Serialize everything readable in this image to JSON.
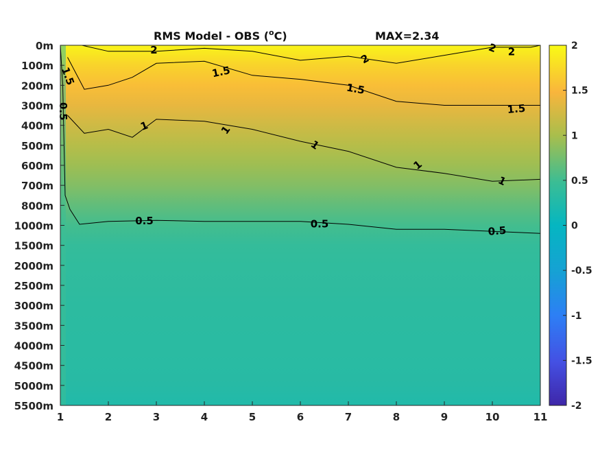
{
  "chart_data": {
    "type": "heatmap",
    "title": "RMS Model - OBS (°C)",
    "title_left": "RMS Model - OBS (",
    "title_sup": "o",
    "title_right": "C)",
    "annotation": "MAX=2.34",
    "max_value": 2.34,
    "x": {
      "ticks": [
        1,
        2,
        3,
        4,
        5,
        6,
        7,
        8,
        9,
        10,
        11
      ],
      "range": [
        1,
        11
      ]
    },
    "y": {
      "ticks": [
        "0m",
        "100m",
        "200m",
        "300m",
        "400m",
        "500m",
        "600m",
        "700m",
        "800m",
        "1000m",
        "1500m",
        "2000m",
        "2500m",
        "3000m",
        "3500m",
        "4000m",
        "4500m",
        "5000m",
        "5500m"
      ]
    },
    "colorbar": {
      "range": [
        -2,
        2
      ],
      "ticks": [
        "2",
        "1.5",
        "1",
        "0.5",
        "0",
        "-0.5",
        "-1",
        "-1.5",
        "-2"
      ],
      "colormap": "parula"
    },
    "contour_levels": [
      0.5,
      1,
      1.5,
      2
    ],
    "contours": [
      {
        "level": 2,
        "points": [
          [
            1.45,
            0.0
          ],
          [
            2.0,
            0.3
          ],
          [
            3.0,
            0.3
          ],
          [
            4.0,
            0.15
          ],
          [
            5.0,
            0.3
          ],
          [
            6.0,
            0.75
          ],
          [
            7.0,
            0.55
          ],
          [
            8.0,
            0.9
          ],
          [
            9.0,
            0.5
          ],
          [
            10.0,
            0.1
          ],
          [
            10.8,
            0.1
          ],
          [
            11.0,
            0.0
          ]
        ]
      },
      {
        "level": 1.5,
        "points": [
          [
            1.15,
            0.6
          ],
          [
            1.5,
            2.2
          ],
          [
            2.0,
            2.0
          ],
          [
            2.5,
            1.6
          ],
          [
            3.0,
            0.9
          ],
          [
            4.0,
            0.8
          ],
          [
            5.0,
            1.5
          ],
          [
            6.0,
            1.7
          ],
          [
            7.0,
            2.0
          ],
          [
            8.0,
            2.8
          ],
          [
            9.0,
            3.0
          ],
          [
            10.0,
            3.0
          ],
          [
            11.0,
            3.0
          ]
        ]
      },
      {
        "level": 1,
        "points": [
          [
            1.15,
            3.5
          ],
          [
            1.5,
            4.4
          ],
          [
            2.0,
            4.2
          ],
          [
            2.5,
            4.6
          ],
          [
            3.0,
            3.7
          ],
          [
            4.0,
            3.8
          ],
          [
            5.0,
            4.2
          ],
          [
            6.0,
            4.8
          ],
          [
            7.0,
            5.3
          ],
          [
            8.0,
            6.1
          ],
          [
            9.0,
            6.4
          ],
          [
            10.0,
            6.8
          ],
          [
            11.0,
            6.7
          ]
        ]
      },
      {
        "level": 0.5,
        "points": [
          [
            1.0,
            0.0
          ],
          [
            1.05,
            2.0
          ],
          [
            1.1,
            7.5
          ],
          [
            1.2,
            8.2
          ],
          [
            1.4,
            8.95
          ],
          [
            2.0,
            8.8
          ],
          [
            3.0,
            8.75
          ],
          [
            4.0,
            8.8
          ],
          [
            5.0,
            8.8
          ],
          [
            6.0,
            8.8
          ],
          [
            7.0,
            8.95
          ],
          [
            8.0,
            9.2
          ],
          [
            9.0,
            9.2
          ],
          [
            10.0,
            9.3
          ],
          [
            11.0,
            9.4
          ]
        ]
      }
    ],
    "contour_labels": [
      {
        "text": "2",
        "x": 2.95,
        "y": 0.25,
        "rotate": 0
      },
      {
        "text": "2",
        "x": 7.35,
        "y": 0.7,
        "rotate": -28
      },
      {
        "text": "2",
        "x": 10.0,
        "y": 0.15,
        "rotate": 20
      },
      {
        "text": "2",
        "x": 10.4,
        "y": 0.35,
        "rotate": 0
      },
      {
        "text": "1.5",
        "x": 1.15,
        "y": 1.55,
        "rotate": 70
      },
      {
        "text": "1.5",
        "x": 4.35,
        "y": 1.35,
        "rotate": -12
      },
      {
        "text": "1.5",
        "x": 7.15,
        "y": 2.2,
        "rotate": 10
      },
      {
        "text": "1.5",
        "x": 10.5,
        "y": 3.2,
        "rotate": -5
      },
      {
        "text": "1",
        "x": 2.75,
        "y": 4.05,
        "rotate": -20
      },
      {
        "text": "1",
        "x": 4.45,
        "y": 4.25,
        "rotate": -55
      },
      {
        "text": "1",
        "x": 6.3,
        "y": 5.0,
        "rotate": 35
      },
      {
        "text": "1",
        "x": 8.45,
        "y": 6.0,
        "rotate": -40
      },
      {
        "text": "1",
        "x": 10.2,
        "y": 6.8,
        "rotate": 25
      },
      {
        "text": "0.5",
        "x": 1.05,
        "y": 3.3,
        "rotate": 90
      },
      {
        "text": "0.5",
        "x": 2.75,
        "y": 8.8,
        "rotate": 0
      },
      {
        "text": "0.5",
        "x": 6.4,
        "y": 8.95,
        "rotate": 0
      },
      {
        "text": "0.5",
        "x": 10.1,
        "y": 9.3,
        "rotate": -5
      }
    ],
    "depth_profile": {
      "y_index": [
        0,
        1,
        2,
        3,
        4,
        5,
        6,
        7,
        8,
        9,
        10,
        11,
        12,
        13,
        14,
        15,
        16,
        17,
        18
      ],
      "values": [
        1.95,
        1.7,
        1.55,
        1.38,
        1.22,
        1.08,
        0.95,
        0.82,
        0.66,
        0.52,
        0.42,
        0.38,
        0.37,
        0.35,
        0.34,
        0.33,
        0.32,
        0.3,
        0.25
      ]
    },
    "grid": false
  }
}
